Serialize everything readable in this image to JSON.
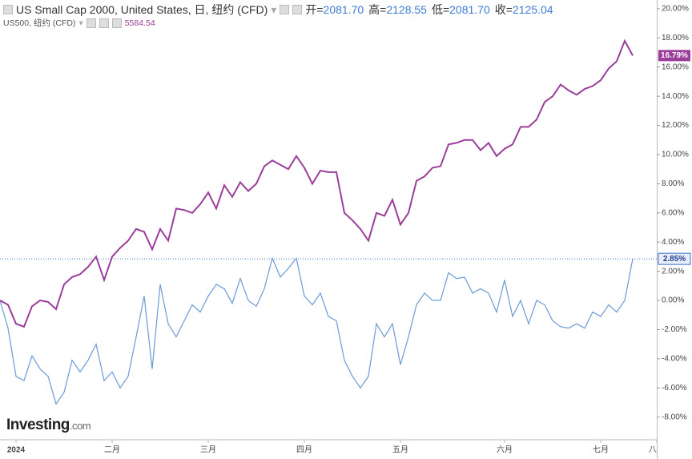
{
  "chart_data": {
    "type": "line",
    "categories": [
      null,
      null,
      "2024",
      null,
      null,
      null,
      null,
      null,
      null,
      null,
      null,
      null,
      null,
      null,
      "二月",
      null,
      null,
      null,
      null,
      null,
      null,
      null,
      null,
      null,
      null,
      null,
      "三月",
      null,
      null,
      null,
      null,
      null,
      null,
      null,
      null,
      null,
      null,
      null,
      "四月",
      null,
      null,
      null,
      null,
      null,
      null,
      null,
      null,
      null,
      null,
      null,
      "五月",
      null,
      null,
      null,
      null,
      null,
      null,
      null,
      null,
      null,
      null,
      null,
      null,
      "六月",
      null,
      null,
      null,
      null,
      null,
      null,
      null,
      null,
      null,
      null,
      null,
      "七月",
      null,
      null,
      null,
      null,
      null,
      null,
      "八月"
    ],
    "series": [
      {
        "name": "US Small Cap 2000, United States, 日, 纽约 (CFD)",
        "color": "#6a9ad8",
        "ohlc": [
          {
            "label": "开=",
            "value": "2081.70"
          },
          {
            "label": "高=",
            "value": "2128.55"
          },
          {
            "label": "低=",
            "value": "2081.70"
          },
          {
            "label": "收=",
            "value": "2125.04"
          }
        ],
        "last_label": "2.85%",
        "values": [
          0,
          -1.9,
          -5.2,
          -5.5,
          -3.8,
          -4.7,
          -5.2,
          -7.1,
          -6.3,
          -4.1,
          -4.9,
          -4.1,
          -3.0,
          -5.5,
          -4.9,
          -6.0,
          -5.2,
          -2.5,
          0.3,
          -4.7,
          1.1,
          -1.6,
          -2.5,
          -1.4,
          -0.3,
          -0.8,
          0.3,
          1.1,
          0.8,
          -0.2,
          1.5,
          0,
          -0.4,
          0.8,
          2.9,
          1.6,
          2.2,
          2.9,
          0.3,
          -0.3,
          0.5,
          -1.1,
          -1.4,
          -4.1,
          -5.2,
          -6.0,
          -5.2,
          -1.6,
          -2.5,
          -1.6,
          -4.4,
          -2.5,
          -0.3,
          0.5,
          0,
          0,
          1.9,
          1.5,
          1.6,
          0.5,
          0.8,
          0.5,
          -0.8,
          1.4,
          -1.1,
          0,
          -1.6,
          0,
          -0.3,
          -1.4,
          -1.8,
          -1.9,
          -1.6,
          -1.9,
          -0.8,
          -1.1,
          -0.3,
          -0.8,
          0,
          2.85,
          null,
          null,
          null
        ]
      },
      {
        "name": "US500, 纽约 (CFD)",
        "color": "#9b3d9b",
        "last_price": "5584.54",
        "last_label": "16.79%",
        "values": [
          0,
          -0.3,
          -1.6,
          -1.8,
          -0.4,
          0,
          -0.1,
          -0.6,
          1.1,
          1.6,
          1.8,
          2.3,
          3.0,
          1.4,
          3.0,
          3.6,
          4.1,
          4.9,
          4.7,
          3.5,
          4.9,
          4.1,
          6.3,
          6.2,
          6.0,
          6.6,
          7.4,
          6.3,
          7.9,
          7.1,
          8.1,
          7.5,
          8.0,
          9.2,
          9.6,
          9.3,
          9.0,
          9.9,
          9.1,
          8.0,
          8.9,
          8.8,
          8.8,
          6.0,
          5.5,
          4.9,
          4.1,
          6.0,
          5.8,
          6.9,
          5.2,
          6.0,
          8.2,
          8.5,
          9.1,
          9.2,
          10.7,
          10.8,
          11.0,
          11.0,
          10.3,
          10.8,
          9.9,
          10.4,
          10.7,
          11.9,
          11.9,
          12.4,
          13.6,
          14.0,
          14.8,
          14.4,
          14.1,
          14.5,
          14.7,
          15.1,
          15.9,
          16.4,
          17.8,
          16.79,
          null,
          null,
          null
        ]
      }
    ],
    "ylim": [
      -9.5,
      20.6
    ],
    "yticks": [
      {
        "value": 20,
        "label": "20.00%"
      },
      {
        "value": 18,
        "label": "18.00%"
      },
      {
        "value": 16,
        "label": "16.00%"
      },
      {
        "value": 14,
        "label": "14.00%"
      },
      {
        "value": 12,
        "label": "12.00%"
      },
      {
        "value": 10,
        "label": "10.00%"
      },
      {
        "value": 8,
        "label": "8.00%"
      },
      {
        "value": 6,
        "label": "6.00%"
      },
      {
        "value": 4,
        "label": "4.00%"
      },
      {
        "value": 2,
        "label": "2.00%"
      },
      {
        "value": 0,
        "label": "0.00%"
      },
      {
        "value": -2,
        "label": "-2.00%"
      },
      {
        "value": -4,
        "label": "-4.00%"
      },
      {
        "value": -6,
        "label": "-6.00%"
      },
      {
        "value": -8,
        "label": "-8.00%"
      }
    ],
    "watermark": [
      "Investing",
      ".com"
    ]
  }
}
